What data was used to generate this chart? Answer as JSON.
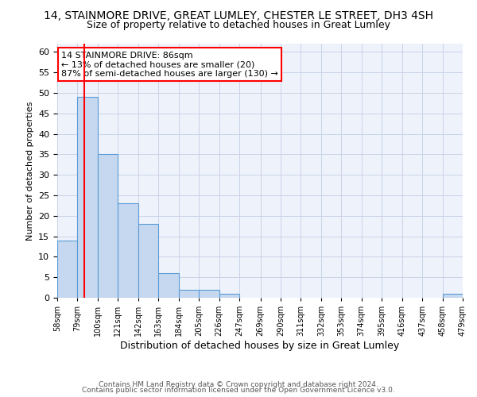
{
  "title": "14, STAINMORE DRIVE, GREAT LUMLEY, CHESTER LE STREET, DH3 4SH",
  "subtitle": "Size of property relative to detached houses in Great Lumley",
  "xlabel": "Distribution of detached houses by size in Great Lumley",
  "ylabel": "Number of detached properties",
  "bar_color": "#c5d8f0",
  "bar_edge_color": "#5b9bd5",
  "bins": [
    58,
    79,
    100,
    121,
    142,
    163,
    184,
    205,
    226,
    247,
    269,
    290,
    311,
    332,
    353,
    374,
    395,
    416,
    437,
    458,
    479
  ],
  "counts": [
    14,
    49,
    35,
    23,
    18,
    6,
    2,
    2,
    1,
    0,
    0,
    0,
    0,
    0,
    0,
    0,
    0,
    0,
    0,
    1
  ],
  "red_line_x": 86,
  "annotation_text": "14 STAINMORE DRIVE: 86sqm\n← 13% of detached houses are smaller (20)\n87% of semi-detached houses are larger (130) →",
  "annotation_box_color": "white",
  "annotation_box_edge": "red",
  "ylim": [
    0,
    62
  ],
  "yticks": [
    0,
    5,
    10,
    15,
    20,
    25,
    30,
    35,
    40,
    45,
    50,
    55,
    60
  ],
  "tick_labels": [
    "58sqm",
    "79sqm",
    "100sqm",
    "121sqm",
    "142sqm",
    "163sqm",
    "184sqm",
    "205sqm",
    "226sqm",
    "247sqm",
    "269sqm",
    "290sqm",
    "311sqm",
    "332sqm",
    "353sqm",
    "374sqm",
    "395sqm",
    "416sqm",
    "437sqm",
    "458sqm",
    "479sqm"
  ],
  "footer_line1": "Contains HM Land Registry data © Crown copyright and database right 2024.",
  "footer_line2": "Contains public sector information licensed under the Open Government Licence v3.0.",
  "background_color": "#eef2fb",
  "grid_color": "#c8d4e8",
  "title_fontsize": 10,
  "subtitle_fontsize": 9,
  "ylabel_fontsize": 8,
  "xlabel_fontsize": 9,
  "annot_fontsize": 8,
  "footer_fontsize": 6.5
}
